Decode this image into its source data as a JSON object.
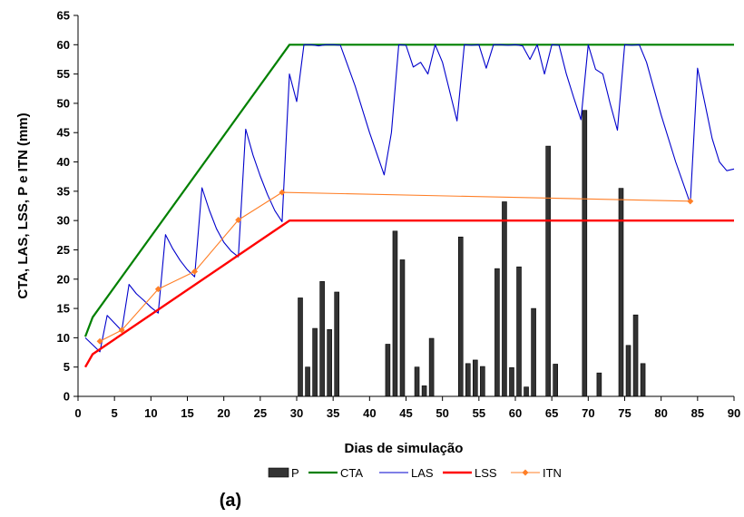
{
  "chart_data": {
    "type": "bar+line",
    "xlabel": "Dias de simulação",
    "ylabel": "CTA, LAS, LSS, P e ITN (mm)",
    "caption": "(a)",
    "xlim": [
      0,
      90
    ],
    "ylim": [
      0,
      65
    ],
    "x_ticks": [
      "0",
      "5",
      "10",
      "15",
      "20",
      "25",
      "30",
      "35",
      "40",
      "45",
      "50",
      "55",
      "60",
      "65",
      "70",
      "75",
      "80",
      "85",
      "90"
    ],
    "y_ticks": [
      "0",
      "5",
      "10",
      "15",
      "20",
      "25",
      "30",
      "35",
      "40",
      "45",
      "50",
      "55",
      "60",
      "65"
    ],
    "legend": [
      "P",
      "CTA",
      "LAS",
      "LSS",
      "ITN"
    ],
    "legend_position": "bottom",
    "colors": {
      "P": "#333333",
      "CTA": "#008000",
      "LAS": "#0000CC",
      "LSS": "#FF0000",
      "ITN": "#FF7F27"
    },
    "series": [
      {
        "name": "P",
        "type": "bar",
        "points": [
          [
            30.5,
            16.8
          ],
          [
            31.5,
            5.0
          ],
          [
            32.5,
            11.6
          ],
          [
            33.5,
            19.6
          ],
          [
            34.5,
            11.4
          ],
          [
            35.5,
            17.8
          ],
          [
            42.5,
            8.9
          ],
          [
            43.5,
            28.2
          ],
          [
            44.5,
            23.3
          ],
          [
            46.5,
            5.0
          ],
          [
            47.5,
            1.8
          ],
          [
            48.5,
            9.9
          ],
          [
            52.5,
            27.2
          ],
          [
            53.5,
            5.6
          ],
          [
            54.5,
            6.2
          ],
          [
            55.5,
            5.1
          ],
          [
            57.5,
            21.8
          ],
          [
            58.5,
            33.2
          ],
          [
            59.5,
            4.9
          ],
          [
            60.5,
            22.1
          ],
          [
            61.5,
            1.6
          ],
          [
            62.5,
            15.0
          ],
          [
            64.5,
            42.7
          ],
          [
            65.5,
            5.5
          ],
          [
            69.5,
            48.8
          ],
          [
            71.5,
            4.0
          ],
          [
            74.5,
            35.5
          ],
          [
            75.5,
            8.7
          ],
          [
            76.5,
            13.9
          ],
          [
            77.5,
            5.6
          ]
        ]
      },
      {
        "name": "CTA",
        "type": "line",
        "points": [
          [
            1,
            10.2
          ],
          [
            2,
            13.5
          ],
          [
            29,
            60
          ],
          [
            90,
            60
          ]
        ]
      },
      {
        "name": "LAS",
        "type": "line",
        "points": [
          [
            1,
            10
          ],
          [
            2,
            8.8
          ],
          [
            3,
            7.6
          ],
          [
            4,
            13.8
          ],
          [
            5,
            12.5
          ],
          [
            6,
            11.2
          ],
          [
            7,
            19.1
          ],
          [
            8,
            17.5
          ],
          [
            9,
            16.4
          ],
          [
            10,
            15.2
          ],
          [
            11,
            14.2
          ],
          [
            12,
            27.6
          ],
          [
            13,
            25.2
          ],
          [
            14,
            23.2
          ],
          [
            15,
            21.6
          ],
          [
            16,
            20.4
          ],
          [
            17,
            35.6
          ],
          [
            18,
            31.8
          ],
          [
            19,
            28.6
          ],
          [
            20,
            26.3
          ],
          [
            21,
            24.8
          ],
          [
            22,
            23.8
          ],
          [
            23,
            45.6
          ],
          [
            24,
            41.2
          ],
          [
            25,
            37.6
          ],
          [
            26,
            34.4
          ],
          [
            27,
            31.7
          ],
          [
            28,
            29.8
          ],
          [
            29,
            55
          ],
          [
            30,
            50.3
          ],
          [
            31,
            60
          ],
          [
            32,
            60
          ],
          [
            33,
            59.8
          ],
          [
            34,
            60
          ],
          [
            35,
            60
          ],
          [
            36,
            59.9
          ],
          [
            38,
            53
          ],
          [
            40,
            45
          ],
          [
            42,
            37.8
          ],
          [
            43,
            45
          ],
          [
            44,
            60
          ],
          [
            45,
            59.9
          ],
          [
            46,
            56.2
          ],
          [
            47,
            57
          ],
          [
            48,
            55
          ],
          [
            49,
            60
          ],
          [
            50,
            57
          ],
          [
            52,
            47
          ],
          [
            53,
            60
          ],
          [
            54,
            59.9
          ],
          [
            55,
            60
          ],
          [
            56,
            56
          ],
          [
            57,
            60
          ],
          [
            58,
            60
          ],
          [
            59,
            59.9
          ],
          [
            60,
            60
          ],
          [
            61,
            59.8
          ],
          [
            62,
            57.5
          ],
          [
            63,
            60
          ],
          [
            64,
            55
          ],
          [
            65,
            60
          ],
          [
            66,
            59.9
          ],
          [
            67,
            55
          ],
          [
            68,
            51
          ],
          [
            69,
            47.2
          ],
          [
            70,
            60
          ],
          [
            71,
            55.8
          ],
          [
            72,
            55
          ],
          [
            73,
            50
          ],
          [
            74,
            45.4
          ],
          [
            75,
            60
          ],
          [
            76,
            59.9
          ],
          [
            77,
            60
          ],
          [
            78,
            57
          ],
          [
            80,
            48
          ],
          [
            82,
            40
          ],
          [
            84,
            32.9
          ],
          [
            85,
            56
          ],
          [
            86,
            50
          ],
          [
            87,
            44
          ],
          [
            88,
            40
          ],
          [
            89,
            38.5
          ],
          [
            90,
            38.8
          ]
        ]
      },
      {
        "name": "LSS",
        "type": "line",
        "points": [
          [
            1,
            5
          ],
          [
            2,
            7.2
          ],
          [
            29,
            30
          ],
          [
            30,
            30
          ],
          [
            90,
            30
          ]
        ]
      },
      {
        "name": "ITN",
        "type": "line",
        "points": [
          [
            3,
            9.4
          ],
          [
            6,
            11.3
          ],
          [
            11,
            18.3
          ],
          [
            16,
            21.3
          ],
          [
            22,
            30.1
          ],
          [
            28,
            34.8
          ],
          [
            84,
            33.3
          ]
        ]
      }
    ]
  }
}
